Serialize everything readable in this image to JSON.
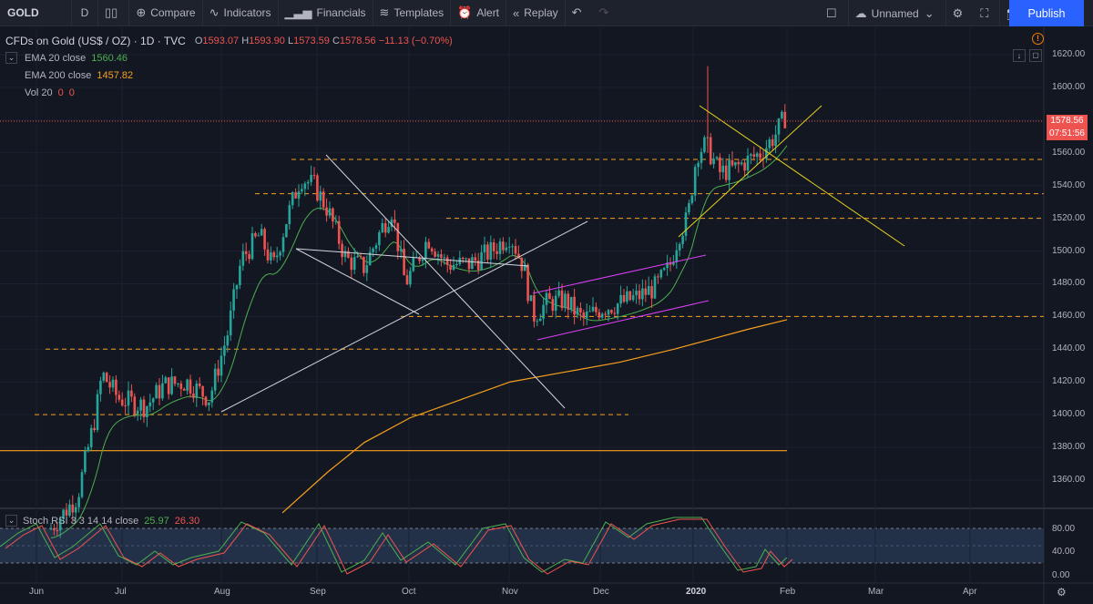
{
  "toolbar": {
    "symbol": "GOLD",
    "interval": "D",
    "compare": "Compare",
    "indicators": "Indicators",
    "financials": "Financials",
    "templates": "Templates",
    "alert": "Alert",
    "replay": "Replay",
    "layout_name": "Unnamed",
    "publish": "Publish"
  },
  "legend": {
    "title": "CFDs on Gold (US$ / OZ) · 1D · TVC",
    "open_k": "O",
    "open": "1593.07",
    "high_k": "H",
    "high": "1593.90",
    "low_k": "L",
    "low": "1573.59",
    "close_k": "C",
    "close": "1578.56",
    "change": "−11.13 (−0.70%)",
    "ema20_label": "EMA 20 close",
    "ema20_value": "1560.46",
    "ema200_label": "EMA 200 close",
    "ema200_value": "1457.82",
    "vol_label": "Vol 20",
    "vol_a": "0",
    "vol_b": "0"
  },
  "stoch": {
    "label": "Stoch RSI 3 3 14 14 close",
    "k": "25.97",
    "d": "26.30"
  },
  "price_axis": [
    "1620.00",
    "1600.00",
    "1580.00",
    "1560.00",
    "1540.00",
    "1520.00",
    "1500.00",
    "1480.00",
    "1460.00",
    "1440.00",
    "1420.00",
    "1400.00",
    "1380.00",
    "1360.00"
  ],
  "stoch_axis": [
    "80.00",
    "40.00",
    "0.00"
  ],
  "last_price": "1578.56",
  "countdown": "07:51:56",
  "time_axis": [
    "Jun",
    "Jul",
    "Aug",
    "Sep",
    "Oct",
    "Nov",
    "Dec",
    "2020",
    "Feb",
    "Mar",
    "Apr"
  ],
  "colors": {
    "up": "#26a69a",
    "down": "#ef5350",
    "ema20": "#4caf50",
    "ema200": "#f7a01d",
    "bg": "#131722",
    "accent": "#2962ff"
  },
  "chart_data": {
    "type": "candlestick",
    "ylim": [
      1340,
      1630
    ],
    "ema20_end": 1560.46,
    "ema200_end": 1457.82,
    "horizontal_levels": [
      1556,
      1535,
      1520,
      1460,
      1440,
      1400,
      1378
    ],
    "last_price": 1578.56
  }
}
